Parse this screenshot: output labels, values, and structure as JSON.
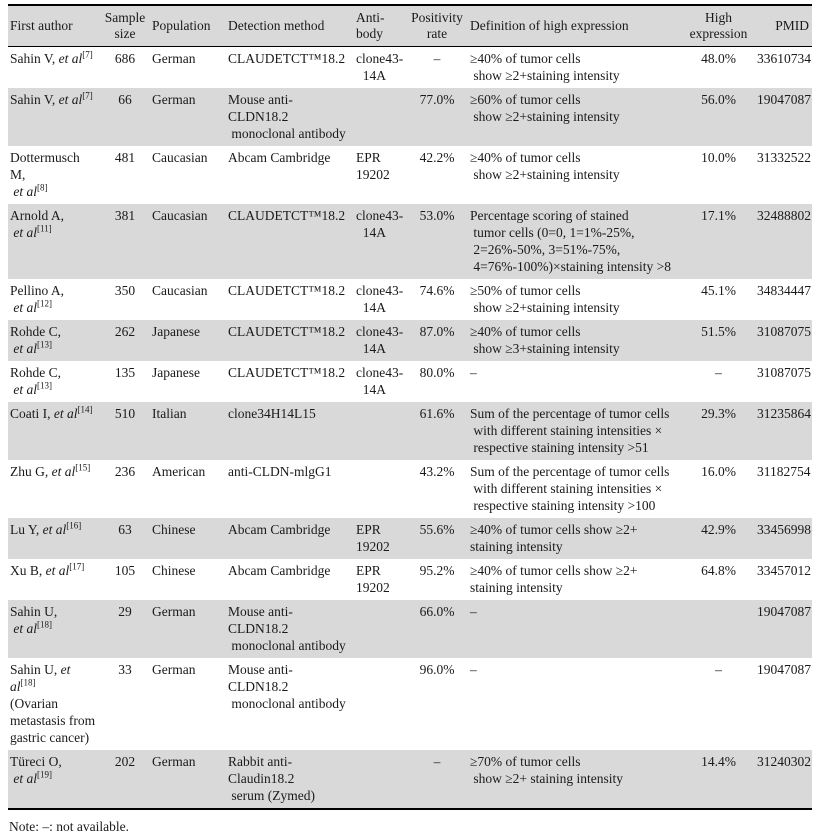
{
  "colors": {
    "stripe": "#d9d9d9",
    "border": "#000000",
    "text": "#1a1a1a",
    "background": "#ffffff"
  },
  "note": "Note: –: not available.",
  "table": {
    "columns": [
      {
        "key": "author",
        "label": "First author"
      },
      {
        "key": "sample_size",
        "label": "Sample\nsize"
      },
      {
        "key": "population",
        "label": "Population"
      },
      {
        "key": "detection_method",
        "label": "Detection method"
      },
      {
        "key": "antibody",
        "label": "Anti-\nbody"
      },
      {
        "key": "positivity_rate",
        "label": "Positivity\nrate"
      },
      {
        "key": "definition",
        "label": "Definition of high expression"
      },
      {
        "key": "high_expression",
        "label": "High\nexpression"
      },
      {
        "key": "pmid",
        "label": "PMID"
      }
    ],
    "rows": [
      {
        "author": [
          [
            {
              "t": "Sahin V, "
            },
            {
              "t": "et al",
              "i": true
            },
            {
              "t": "[7]",
              "sup": true
            }
          ]
        ],
        "sample_size": "686",
        "population": "German",
        "detection_method": "CLAUDETCT™18.2",
        "antibody": "clone43-\n  14A",
        "positivity_rate": "–",
        "definition": "≥40% of tumor cells\n show ≥2+staining intensity",
        "high_expression": "48.0%",
        "pmid": "33610734"
      },
      {
        "author": [
          [
            {
              "t": "Sahin V, "
            },
            {
              "t": "et al",
              "i": true
            },
            {
              "t": "[7]",
              "sup": true
            }
          ]
        ],
        "sample_size": "66",
        "population": "German",
        "detection_method": "Mouse anti-CLDN18.2\n monoclonal antibody",
        "antibody": "",
        "positivity_rate": "77.0%",
        "definition": "≥60% of tumor cells\n show ≥2+staining intensity",
        "high_expression": "56.0%",
        "pmid": "19047087"
      },
      {
        "author": [
          [
            {
              "t": "Dottermusch M,"
            }
          ],
          [
            {
              "t": " et al",
              "i": true
            },
            {
              "t": "[8]",
              "sup": true
            }
          ]
        ],
        "sample_size": "481",
        "population": "Caucasian",
        "detection_method": "Abcam Cambridge",
        "antibody": "EPR\n19202",
        "positivity_rate": "42.2%",
        "definition": "≥40% of tumor cells\n show ≥2+staining intensity",
        "high_expression": "10.0%",
        "pmid": "31332522"
      },
      {
        "author": [
          [
            {
              "t": "Arnold A,"
            }
          ],
          [
            {
              "t": " et al",
              "i": true
            },
            {
              "t": "[11]",
              "sup": true
            }
          ]
        ],
        "sample_size": "381",
        "population": "Caucasian",
        "detection_method": "CLAUDETCT™18.2",
        "antibody": "clone43-\n  14A",
        "positivity_rate": "53.0%",
        "definition": "Percentage scoring of stained\n tumor cells (0=0, 1=1%-25%,\n 2=26%-50%, 3=51%-75%,\n 4=76%-100%)×staining intensity >8",
        "high_expression": "17.1%",
        "pmid": "32488802"
      },
      {
        "author": [
          [
            {
              "t": "Pellino A,"
            }
          ],
          [
            {
              "t": " et al",
              "i": true
            },
            {
              "t": "[12]",
              "sup": true
            }
          ]
        ],
        "sample_size": "350",
        "population": "Caucasian",
        "detection_method": "CLAUDETCT™18.2",
        "antibody": "clone43-\n  14A",
        "positivity_rate": "74.6%",
        "definition": "≥50% of tumor cells\n show ≥2+staining intensity",
        "high_expression": "45.1%",
        "pmid": "34834447"
      },
      {
        "author": [
          [
            {
              "t": "Rohde C,"
            }
          ],
          [
            {
              "t": " et al",
              "i": true
            },
            {
              "t": "[13]",
              "sup": true
            }
          ]
        ],
        "sample_size": "262",
        "population": "Japanese",
        "detection_method": "CLAUDETCT™18.2",
        "antibody": "clone43-\n  14A",
        "positivity_rate": "87.0%",
        "definition": "≥40% of tumor cells\n show ≥3+staining intensity",
        "high_expression": "51.5%",
        "pmid": "31087075"
      },
      {
        "author": [
          [
            {
              "t": "Rohde C,"
            }
          ],
          [
            {
              "t": " et al",
              "i": true
            },
            {
              "t": "[13]",
              "sup": true
            }
          ]
        ],
        "sample_size": "135",
        "population": "Japanese",
        "detection_method": "CLAUDETCT™18.2",
        "antibody": "clone43-\n  14A",
        "positivity_rate": "80.0%",
        "definition": "–",
        "high_expression": "–",
        "pmid": "31087075"
      },
      {
        "author": [
          [
            {
              "t": "Coati I, "
            },
            {
              "t": "et al",
              "i": true
            },
            {
              "t": "[14]",
              "sup": true
            }
          ]
        ],
        "sample_size": "510",
        "population": "Italian",
        "detection_method": "clone34H14L15",
        "antibody": "",
        "positivity_rate": "61.6%",
        "definition": "Sum of the percentage of tumor cells\n with different staining intensities ×\n respective staining intensity >51",
        "high_expression": "29.3%",
        "pmid": "31235864"
      },
      {
        "author": [
          [
            {
              "t": "Zhu G, "
            },
            {
              "t": "et al",
              "i": true
            },
            {
              "t": "[15]",
              "sup": true
            }
          ]
        ],
        "sample_size": "236",
        "population": "American",
        "detection_method": "anti-CLDN-mlgG1",
        "antibody": "",
        "positivity_rate": "43.2%",
        "definition": "Sum of the percentage of tumor cells\n with different staining intensities ×\n respective staining intensity >100",
        "high_expression": "16.0%",
        "pmid": "31182754"
      },
      {
        "author": [
          [
            {
              "t": "Lu Y, "
            },
            {
              "t": "et al",
              "i": true
            },
            {
              "t": "[16]",
              "sup": true
            }
          ]
        ],
        "sample_size": "63",
        "population": "Chinese",
        "detection_method": "Abcam Cambridge",
        "antibody": "EPR\n19202",
        "positivity_rate": "55.6%",
        "definition": "≥40% of tumor cells show ≥2+\nstaining intensity",
        "high_expression": "42.9%",
        "pmid": "33456998"
      },
      {
        "author": [
          [
            {
              "t": "Xu B, "
            },
            {
              "t": "et al",
              "i": true
            },
            {
              "t": "[17]",
              "sup": true
            }
          ]
        ],
        "sample_size": "105",
        "population": "Chinese",
        "detection_method": "Abcam Cambridge",
        "antibody": "EPR\n19202",
        "positivity_rate": "95.2%",
        "definition": "≥40% of tumor cells show ≥2+\nstaining intensity",
        "high_expression": "64.8%",
        "pmid": "33457012"
      },
      {
        "author": [
          [
            {
              "t": "Sahin U,"
            }
          ],
          [
            {
              "t": " et al",
              "i": true
            },
            {
              "t": "[18]",
              "sup": true
            }
          ]
        ],
        "sample_size": "29",
        "population": "German",
        "detection_method": "Mouse anti-CLDN18.2\n monoclonal antibody",
        "antibody": "",
        "positivity_rate": "66.0%",
        "definition": "–",
        "high_expression": "",
        "pmid": "19047087"
      },
      {
        "author": [
          [
            {
              "t": "Sahin U, "
            },
            {
              "t": "et al",
              "i": true
            },
            {
              "t": "[18]",
              "sup": true
            }
          ],
          [
            {
              "t": "(Ovarian"
            }
          ],
          [
            {
              "t": "metastasis from"
            }
          ],
          [
            {
              "t": "gastric cancer)"
            }
          ]
        ],
        "sample_size": "33",
        "population": "German",
        "detection_method": "Mouse anti-CLDN18.2\n monoclonal antibody",
        "antibody": "",
        "positivity_rate": "96.0%",
        "definition": "–",
        "high_expression": "–",
        "pmid": "19047087"
      },
      {
        "author": [
          [
            {
              "t": "Türeci O,"
            }
          ],
          [
            {
              "t": " et al",
              "i": true
            },
            {
              "t": "[19]",
              "sup": true
            }
          ]
        ],
        "sample_size": "202",
        "population": "German",
        "detection_method": "Rabbit anti-Claudin18.2\n serum (Zymed)",
        "antibody": "",
        "positivity_rate": "–",
        "definition": "≥70% of tumor cells\n show ≥2+ staining intensity",
        "high_expression": "14.4%",
        "pmid": "31240302"
      }
    ]
  }
}
